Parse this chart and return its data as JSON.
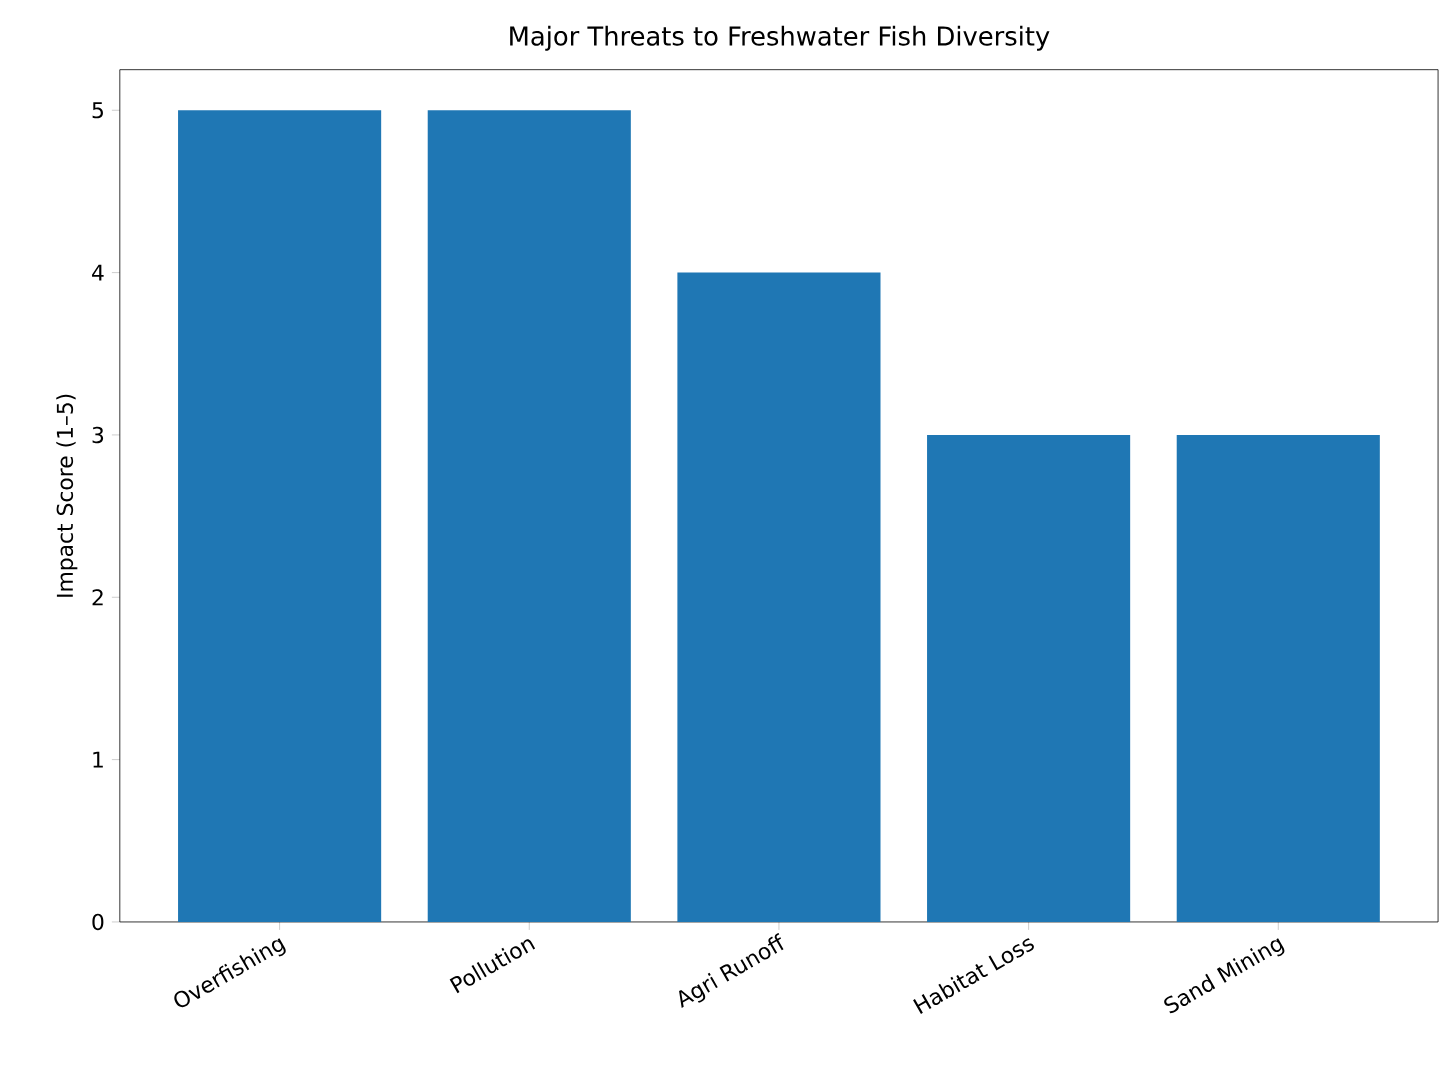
{
  "chart_data": {
    "type": "bar",
    "title": "Major Threats to Freshwater Fish Diversity",
    "ylabel": "Impact Score (1–5)",
    "categories": [
      "Overfishing",
      "Pollution",
      "Agri Runoff",
      "Habitat Loss",
      "Sand Mining"
    ],
    "values": [
      5,
      5,
      4,
      3,
      3
    ],
    "color": "#1f77b4",
    "ylim": [
      0,
      5.25
    ],
    "yticks": [
      0,
      1,
      2,
      3,
      4,
      5
    ],
    "grid": false
  }
}
